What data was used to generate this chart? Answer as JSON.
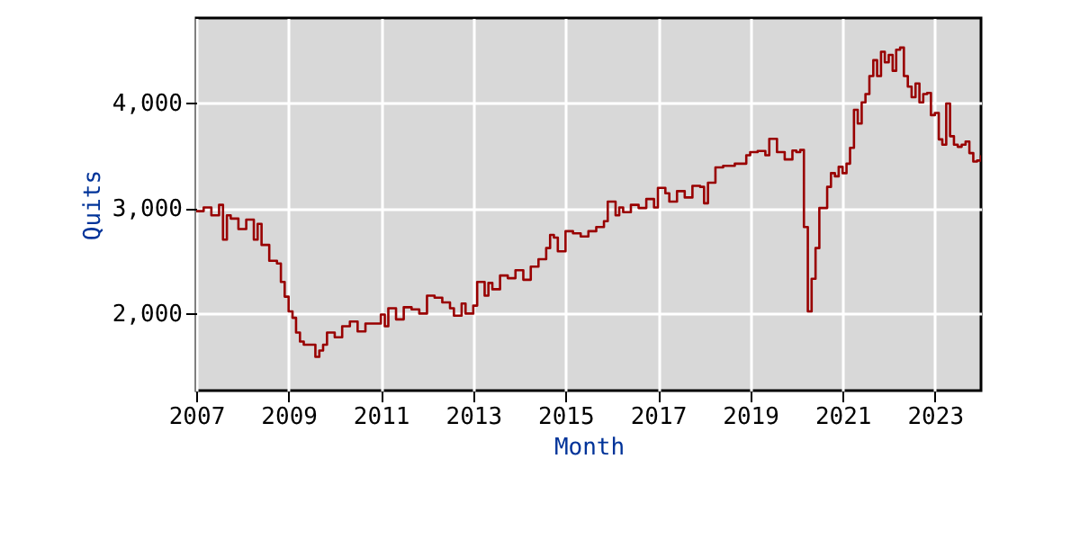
{
  "chart_data": {
    "type": "step",
    "xlabel": "Month",
    "ylabel": "Quits",
    "xlim": [
      "2007-01",
      "2024-01"
    ],
    "xticks": [
      {
        "value": "2007-01",
        "label": "2007"
      },
      {
        "value": "2009-01",
        "label": "2009"
      },
      {
        "value": "2011-01",
        "label": "2011"
      },
      {
        "value": "2013-01",
        "label": "2013"
      },
      {
        "value": "2015-01",
        "label": "2015"
      },
      {
        "value": "2017-01",
        "label": "2017"
      },
      {
        "value": "2019-01",
        "label": "2019"
      },
      {
        "value": "2021-01",
        "label": "2021"
      },
      {
        "value": "2023-01",
        "label": "2023"
      }
    ],
    "ylim": [
      1270,
      4800
    ],
    "yticks": [
      {
        "value": 2000,
        "label": "2,000"
      },
      {
        "value": 3000,
        "label": "3,000"
      },
      {
        "value": 4000,
        "label": "4,000"
      }
    ],
    "grid": true,
    "series": [
      {
        "color": "#990000",
        "x": [
          "2007-01",
          "2007-03",
          "2007-05",
          "2007-07",
          "2007-08",
          "2007-09",
          "2007-10",
          "2007-12",
          "2008-02",
          "2008-04",
          "2008-05",
          "2008-06",
          "2008-08",
          "2008-10",
          "2008-11",
          "2008-12",
          "2009-01",
          "2009-02",
          "2009-03",
          "2009-04",
          "2009-05",
          "2009-07",
          "2009-08",
          "2009-09",
          "2009-10",
          "2009-11",
          "2010-01",
          "2010-03",
          "2010-05",
          "2010-07",
          "2010-09",
          "2010-11",
          "2011-01",
          "2011-02",
          "2011-03",
          "2011-05",
          "2011-07",
          "2011-09",
          "2011-11",
          "2012-01",
          "2012-03",
          "2012-05",
          "2012-07",
          "2012-08",
          "2012-10",
          "2012-11",
          "2013-01",
          "2013-02",
          "2013-04",
          "2013-05",
          "2013-06",
          "2013-08",
          "2013-10",
          "2013-12",
          "2014-02",
          "2014-04",
          "2014-06",
          "2014-08",
          "2014-09",
          "2014-10",
          "2014-11",
          "2015-01",
          "2015-03",
          "2015-05",
          "2015-07",
          "2015-09",
          "2015-11",
          "2015-12",
          "2016-02",
          "2016-03",
          "2016-04",
          "2016-06",
          "2016-08",
          "2016-10",
          "2016-12",
          "2017-01",
          "2017-03",
          "2017-04",
          "2017-06",
          "2017-08",
          "2017-10",
          "2017-12",
          "2018-01",
          "2018-02",
          "2018-04",
          "2018-06",
          "2018-09",
          "2018-12",
          "2019-01",
          "2019-03",
          "2019-05",
          "2019-06",
          "2019-08",
          "2019-10",
          "2019-12",
          "2020-01",
          "2020-02",
          "2020-03",
          "2020-04",
          "2020-05",
          "2020-06",
          "2020-07",
          "2020-08",
          "2020-09",
          "2020-10",
          "2020-11",
          "2020-12",
          "2021-01",
          "2021-02",
          "2021-03",
          "2021-04",
          "2021-05",
          "2021-06",
          "2021-07",
          "2021-08",
          "2021-09",
          "2021-10",
          "2021-11",
          "2021-12",
          "2022-01",
          "2022-02",
          "2022-03",
          "2022-04",
          "2022-05",
          "2022-06",
          "2022-07",
          "2022-08",
          "2022-09",
          "2022-10",
          "2022-11",
          "2022-12",
          "2023-01",
          "2023-02",
          "2023-03",
          "2023-04",
          "2023-05",
          "2023-06",
          "2023-07",
          "2023-08",
          "2023-09",
          "2023-10",
          "2023-11",
          "2023-12",
          "2024-01"
        ],
        "values": [
          2970,
          3005,
          2930,
          3030,
          2700,
          2930,
          2900,
          2800,
          2890,
          2700,
          2850,
          2650,
          2500,
          2475,
          2300,
          2160,
          2020,
          1960,
          1820,
          1735,
          1705,
          1705,
          1590,
          1650,
          1705,
          1820,
          1775,
          1880,
          1925,
          1830,
          1905,
          1905,
          1990,
          1880,
          2050,
          1945,
          2060,
          2040,
          2000,
          2170,
          2150,
          2105,
          2050,
          1980,
          2095,
          2000,
          2075,
          2300,
          2170,
          2290,
          2230,
          2360,
          2335,
          2410,
          2320,
          2445,
          2515,
          2620,
          2745,
          2720,
          2590,
          2780,
          2760,
          2730,
          2780,
          2820,
          2875,
          3060,
          2930,
          3005,
          2960,
          3030,
          3000,
          3085,
          3005,
          3190,
          3140,
          3060,
          3160,
          3100,
          3210,
          3200,
          3045,
          3240,
          3385,
          3400,
          3420,
          3500,
          3530,
          3540,
          3500,
          3655,
          3530,
          3460,
          3545,
          3530,
          3550,
          2820,
          2020,
          2330,
          2620,
          3000,
          3000,
          3200,
          3330,
          3300,
          3390,
          3330,
          3420,
          3570,
          3930,
          3800,
          4000,
          4080,
          4250,
          4400,
          4250,
          4480,
          4380,
          4450,
          4300,
          4500,
          4520,
          4250,
          4150,
          4050,
          4180,
          4000,
          4080,
          4090,
          3880,
          3900,
          3650,
          3600,
          3990,
          3680,
          3600,
          3580,
          3600,
          3630,
          3520,
          3440,
          3450,
          3500
        ]
      }
    ]
  }
}
